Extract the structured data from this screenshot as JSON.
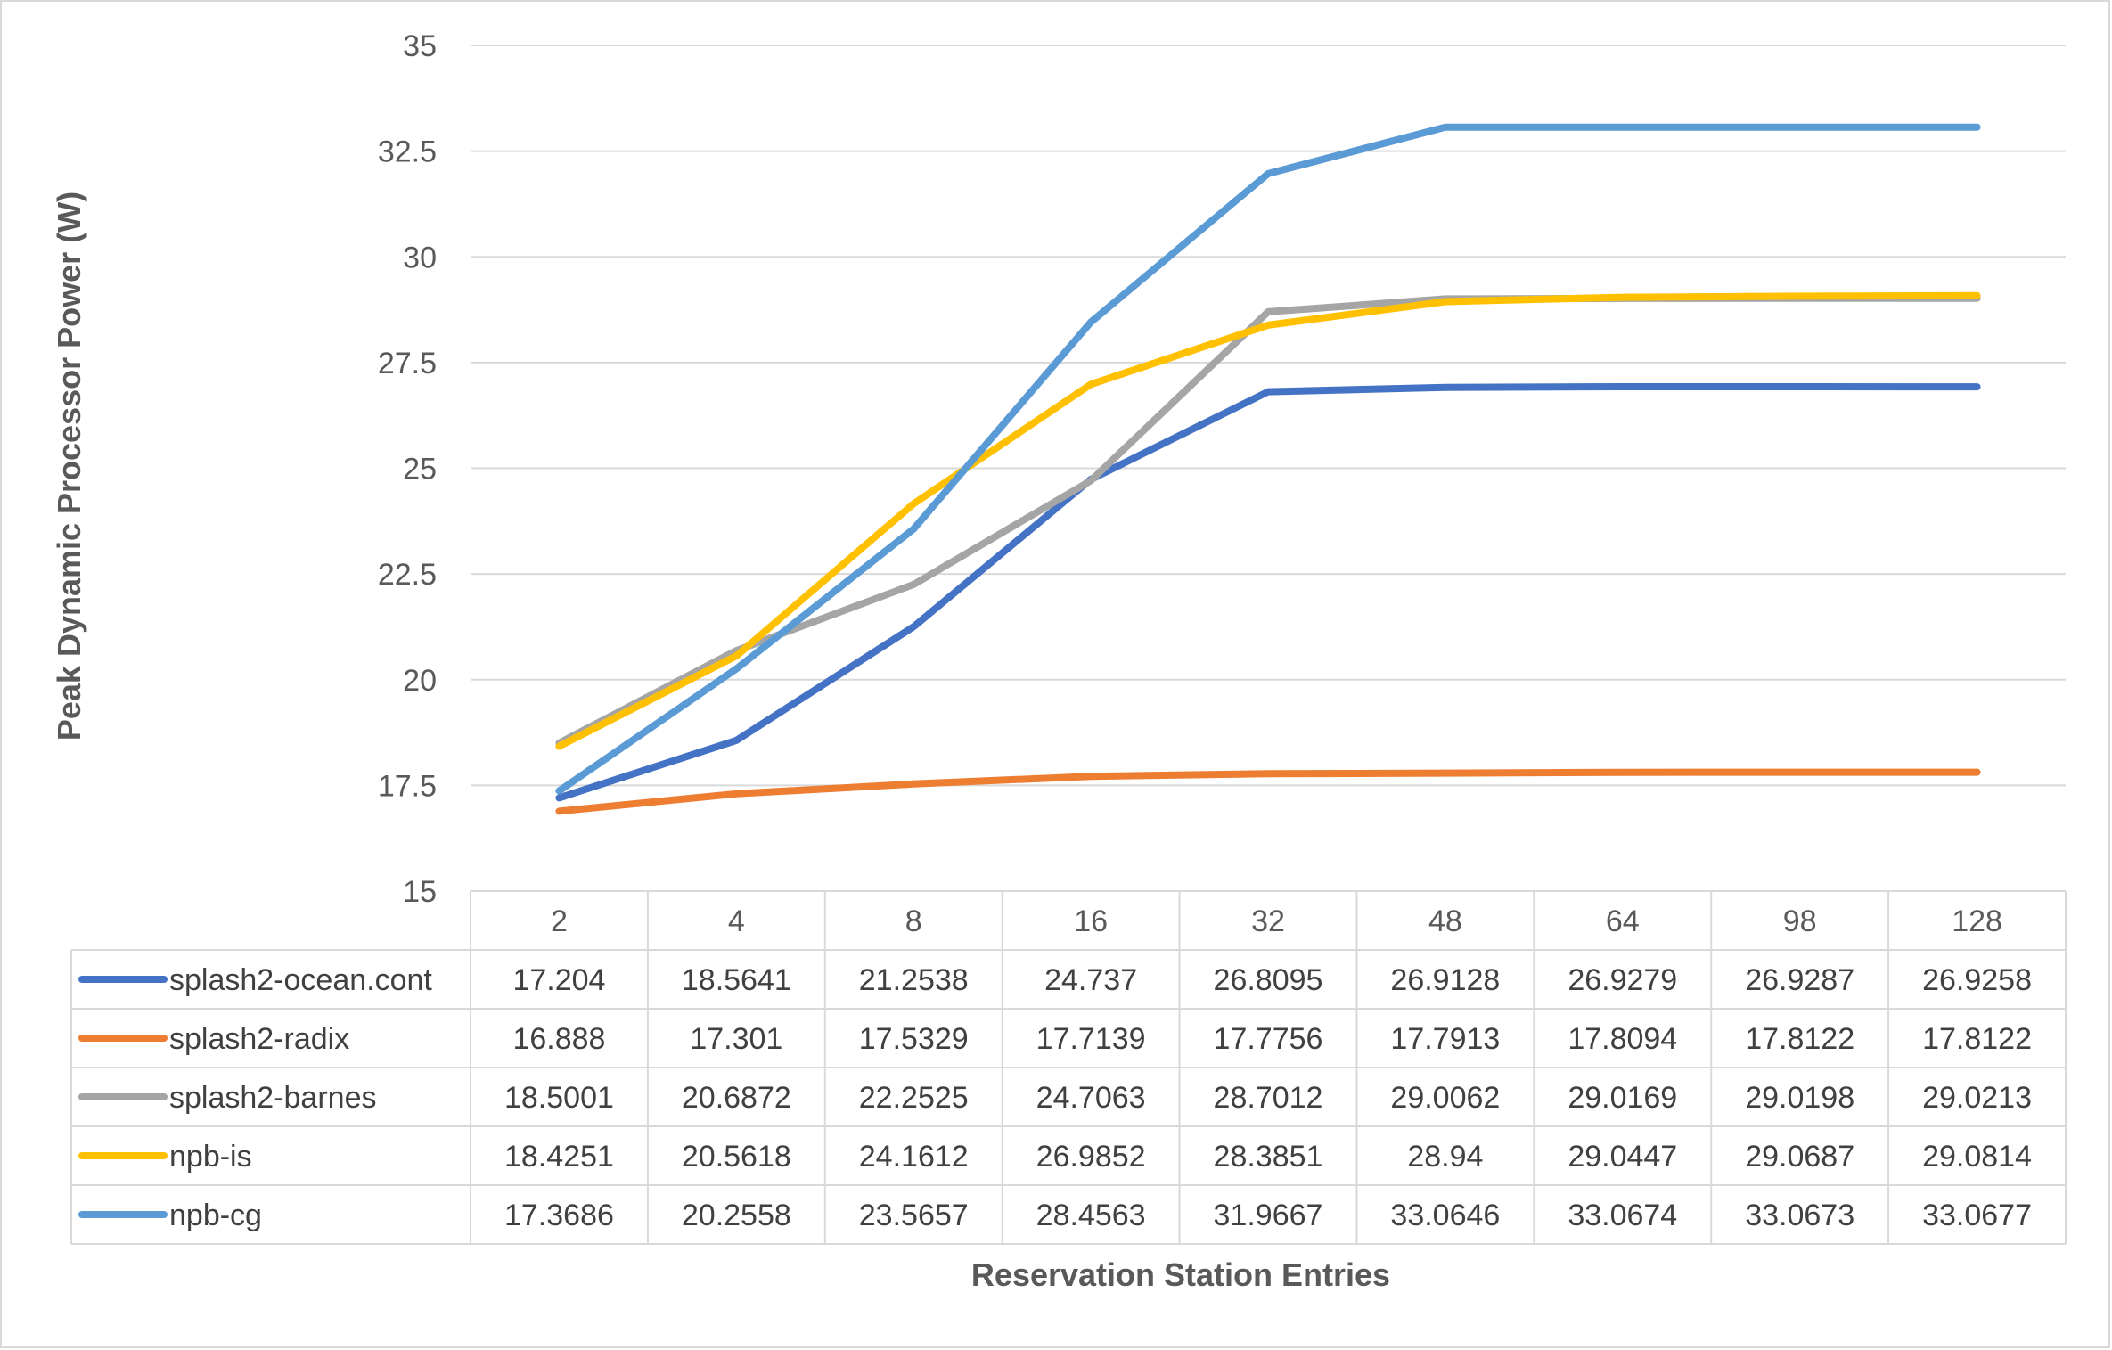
{
  "chart_data": {
    "type": "line",
    "xlabel": "Reservation Station Entries",
    "ylabel": "Peak Dynamic Processor Power (W)",
    "ylim": [
      15,
      35
    ],
    "yticks": [
      "15",
      "17.5",
      "20",
      "22.5",
      "25",
      "27.5",
      "30",
      "32.5",
      "35"
    ],
    "ytick_values": [
      15,
      17.5,
      20,
      22.5,
      25,
      27.5,
      30,
      32.5,
      35
    ],
    "grid": true,
    "legend": "data-table",
    "categories": [
      "2",
      "4",
      "8",
      "16",
      "32",
      "48",
      "64",
      "98",
      "128"
    ],
    "series": [
      {
        "name": "splash2-ocean.cont",
        "color": "#4472C4",
        "values": [
          17.204,
          18.5641,
          21.2538,
          24.737,
          26.8095,
          26.9128,
          26.9279,
          26.9287,
          26.9258
        ],
        "labels": [
          "17.204",
          "18.5641",
          "21.2538",
          "24.737",
          "26.8095",
          "26.9128",
          "26.9279",
          "26.9287",
          "26.9258"
        ]
      },
      {
        "name": "splash2-radix",
        "color": "#ED7D31",
        "values": [
          16.888,
          17.301,
          17.5329,
          17.7139,
          17.7756,
          17.7913,
          17.8094,
          17.8122,
          17.8122
        ],
        "labels": [
          "16.888",
          "17.301",
          "17.5329",
          "17.7139",
          "17.7756",
          "17.7913",
          "17.8094",
          "17.8122",
          "17.8122"
        ]
      },
      {
        "name": "splash2-barnes",
        "color": "#A5A5A5",
        "values": [
          18.5001,
          20.6872,
          22.2525,
          24.7063,
          28.7012,
          29.0062,
          29.0169,
          29.0198,
          29.0213
        ],
        "labels": [
          "18.5001",
          "20.6872",
          "22.2525",
          "24.7063",
          "28.7012",
          "29.0062",
          "29.0169",
          "29.0198",
          "29.0213"
        ]
      },
      {
        "name": "npb-is",
        "color": "#FFC000",
        "values": [
          18.4251,
          20.5618,
          24.1612,
          26.9852,
          28.3851,
          28.94,
          29.0447,
          29.0687,
          29.0814
        ],
        "labels": [
          "18.4251",
          "20.5618",
          "24.1612",
          "26.9852",
          "28.3851",
          "28.94",
          "29.0447",
          "29.0687",
          "29.0814"
        ]
      },
      {
        "name": "npb-cg",
        "color": "#5B9BD5",
        "values": [
          17.3686,
          20.2558,
          23.5657,
          28.4563,
          31.9667,
          33.0646,
          33.0674,
          33.0673,
          33.0677
        ],
        "labels": [
          "17.3686",
          "20.2558",
          "23.5657",
          "28.4563",
          "31.9667",
          "33.0646",
          "33.0674",
          "33.0673",
          "33.0677"
        ]
      }
    ]
  }
}
